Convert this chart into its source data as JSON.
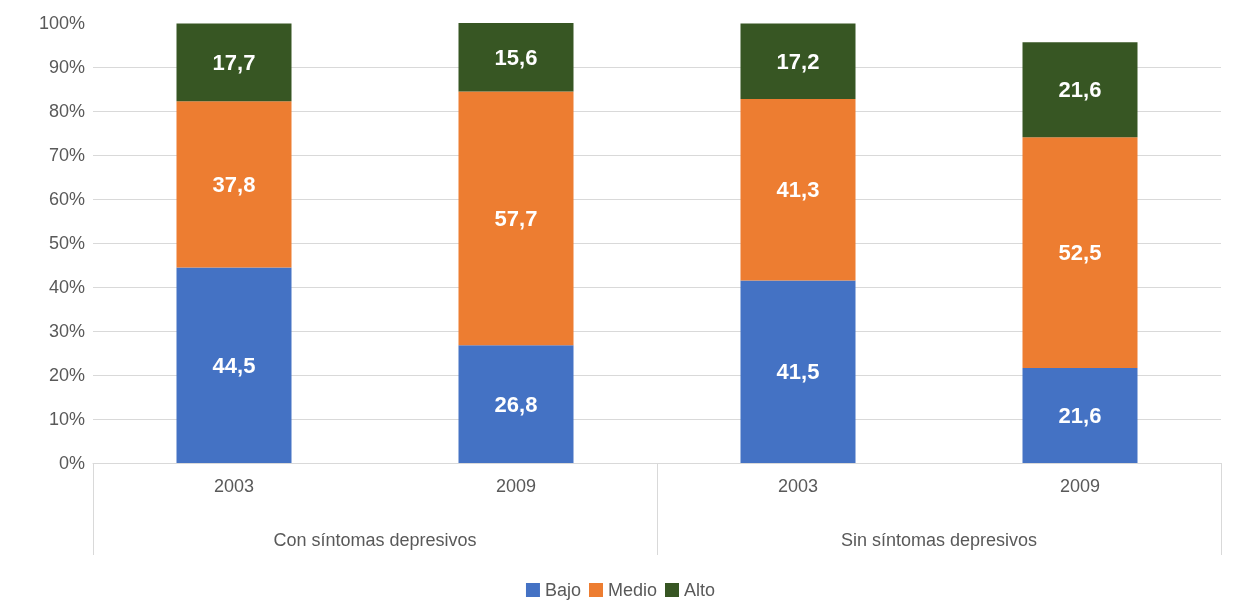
{
  "chart_data": {
    "type": "bar",
    "stacked": true,
    "categories": [
      "2003",
      "2009",
      "2003",
      "2009"
    ],
    "annotations": [
      "Con síntomas depresivos",
      "Sin síntomas depresivos"
    ],
    "series": [
      {
        "name": "Bajo",
        "color": "#4472c4",
        "values": [
          44.5,
          26.8,
          41.5,
          21.6
        ],
        "value_labels": [
          "44,5",
          "26,8",
          "41,5",
          "21,6"
        ]
      },
      {
        "name": "Medio",
        "color": "#ed7d31",
        "values": [
          37.8,
          57.7,
          41.3,
          52.5
        ],
        "value_labels": [
          "37,8",
          "57,7",
          "41,3",
          "52,5"
        ]
      },
      {
        "name": "Alto",
        "color": "#375623",
        "values": [
          17.7,
          15.6,
          17.2,
          21.6
        ],
        "value_labels": [
          "17,7",
          "15,6",
          "17,2",
          "21,6"
        ]
      }
    ],
    "ylim": [
      0,
      100.1
    ],
    "yticks": [
      {
        "value": 0,
        "label": "0%"
      },
      {
        "value": 10,
        "label": "10%"
      },
      {
        "value": 20,
        "label": "20%"
      },
      {
        "value": 30,
        "label": "30%"
      },
      {
        "value": 40,
        "label": "40%"
      },
      {
        "value": 50,
        "label": "50%"
      },
      {
        "value": 60,
        "label": "60%"
      },
      {
        "value": 70,
        "label": "70%"
      },
      {
        "value": 80,
        "label": "80%"
      },
      {
        "value": 90,
        "label": "90%"
      },
      {
        "value": 100,
        "label": "100%"
      }
    ],
    "grid": "y",
    "legend": "bottom"
  }
}
